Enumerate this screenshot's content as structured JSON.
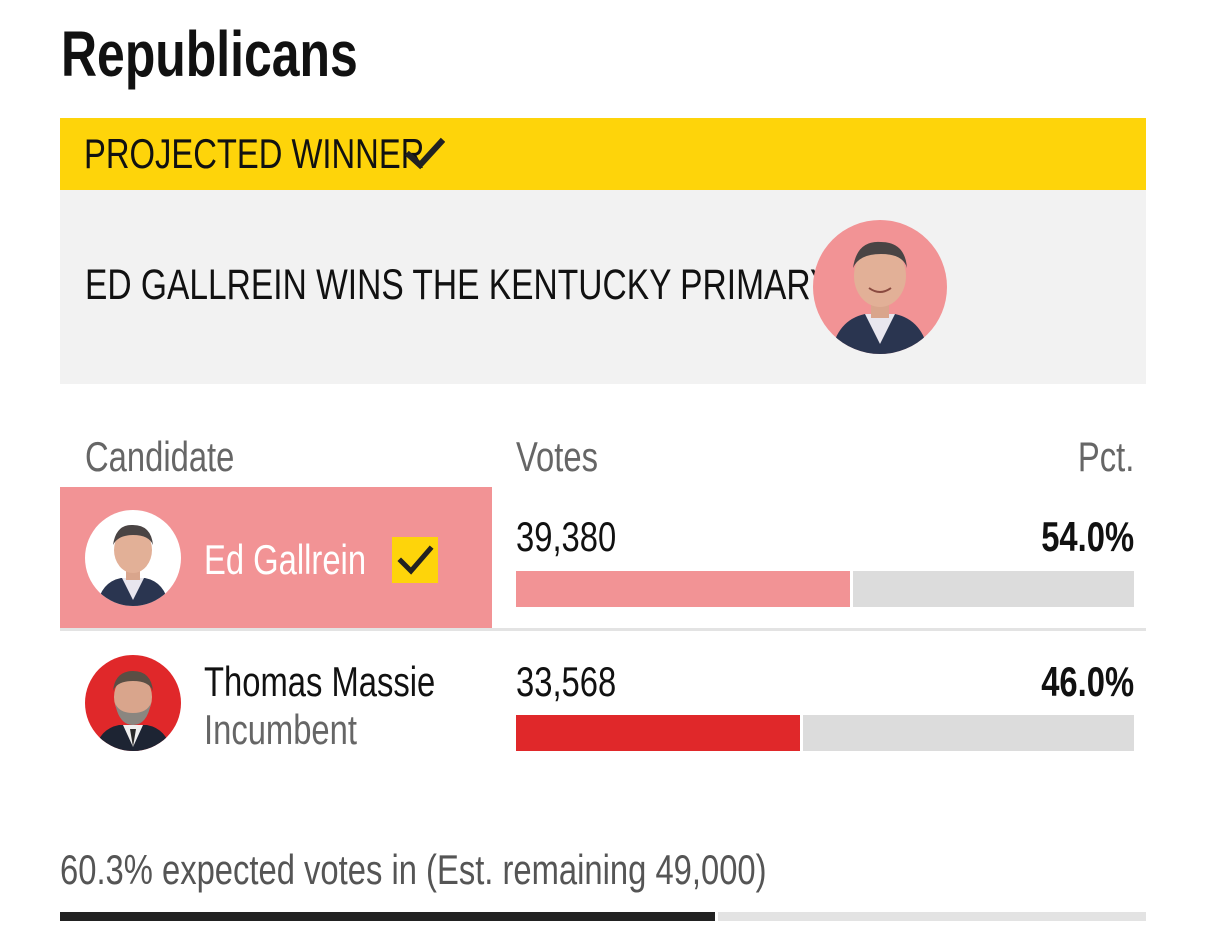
{
  "header": {
    "title": "Republicans"
  },
  "banner": {
    "label": "PROJECTED WINNER",
    "icon": "checkmark-icon",
    "color": "#fed40a"
  },
  "winner": {
    "headline": "ED GALLREIN WINS THE KENTUCKY PRIMARY",
    "avatar_icon": "candidate-portrait"
  },
  "table": {
    "columns": {
      "candidate": "Candidate",
      "votes": "Votes",
      "pct": "Pct."
    },
    "rows": [
      {
        "name": "Ed Gallrein",
        "status": "",
        "votes": "39,380",
        "pct": "54.0%",
        "share": 0.54,
        "winner": true,
        "color": "#f29395"
      },
      {
        "name": "Thomas Massie",
        "status": "Incumbent",
        "votes": "33,568",
        "pct": "46.0%",
        "share": 0.46,
        "winner": false,
        "color": "#e0282a"
      }
    ]
  },
  "footer": {
    "expected_text": "60.3% expected votes in (Est. remaining 49,000)",
    "expected_share": 0.603
  }
}
